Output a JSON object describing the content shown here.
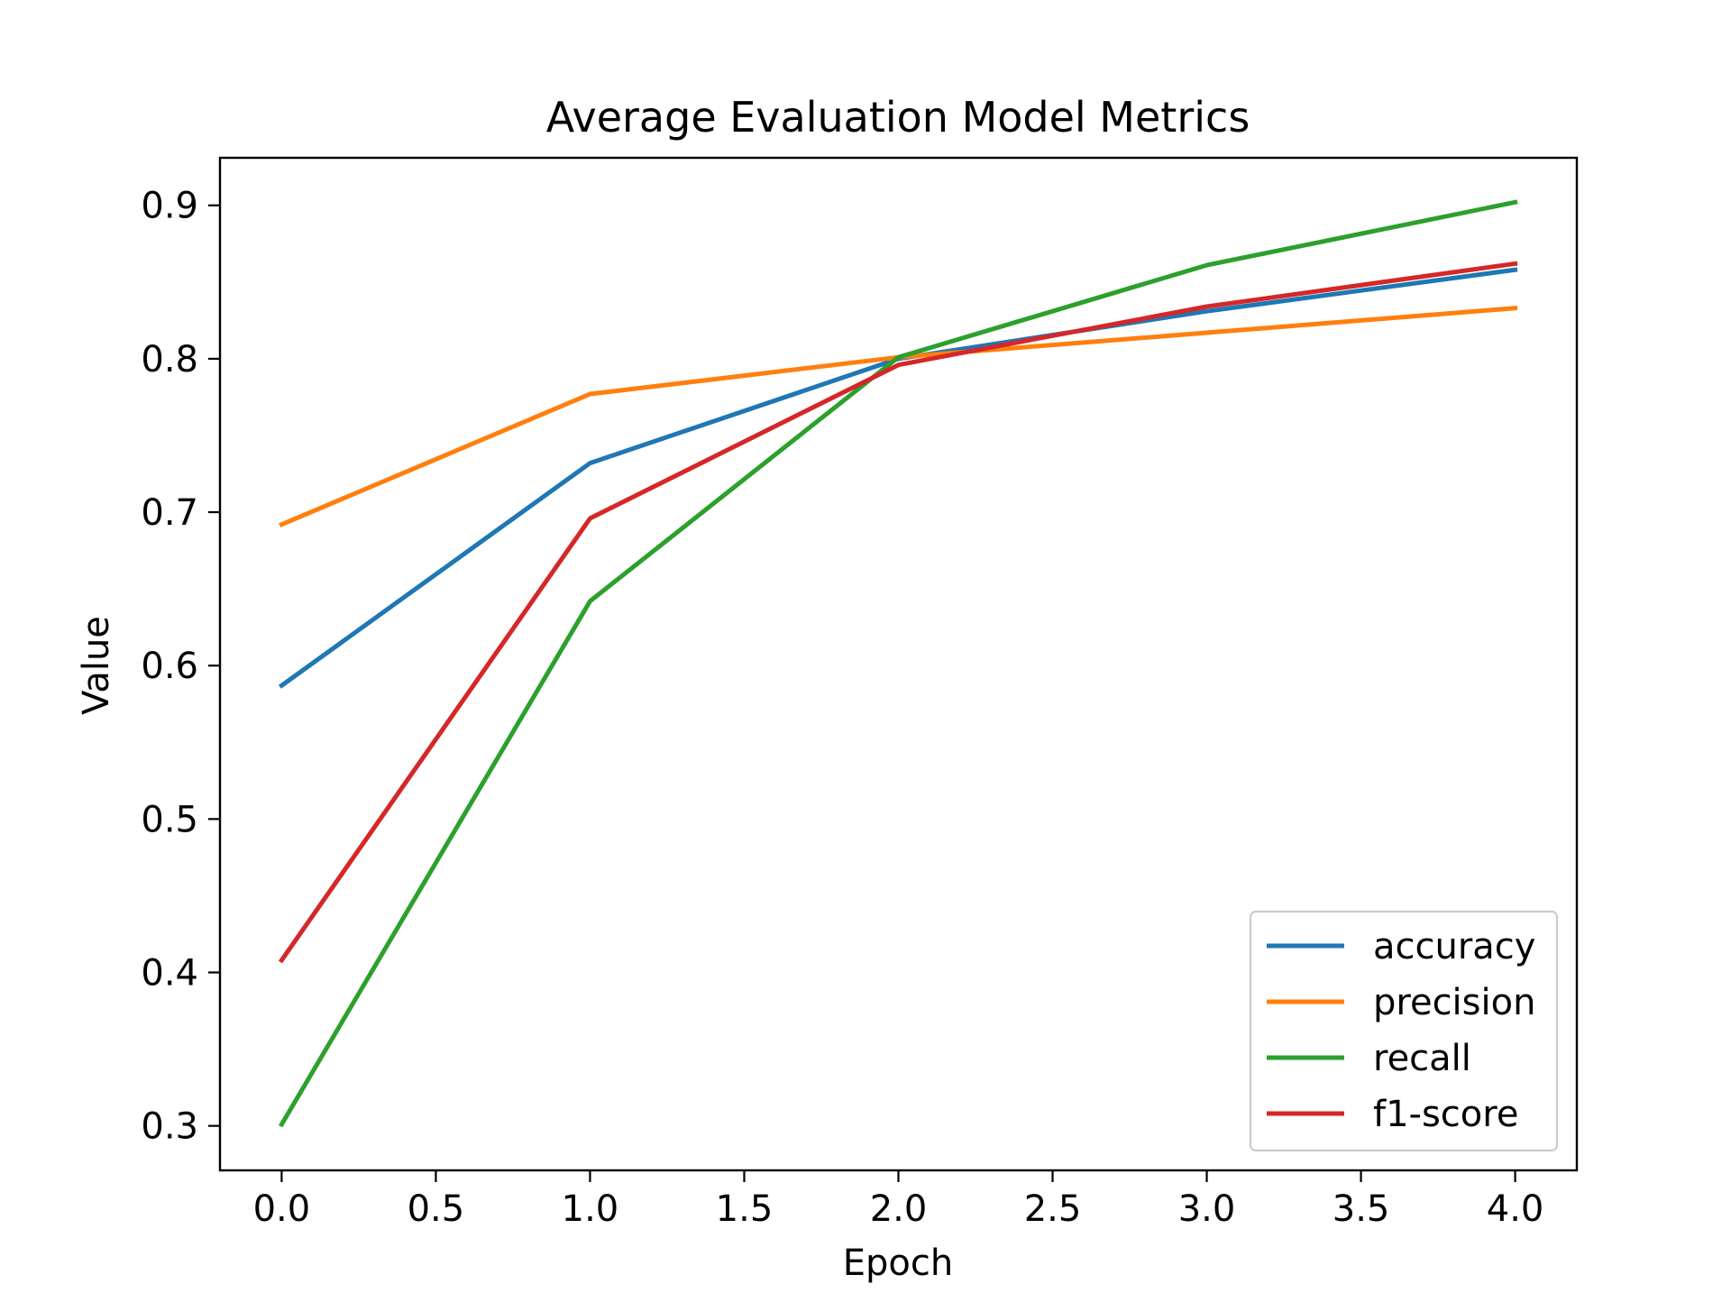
{
  "chart_data": {
    "type": "line",
    "title": "Average Evaluation Model Metrics",
    "xlabel": "Epoch",
    "ylabel": "Value",
    "x": [
      0.0,
      1.0,
      2.0,
      3.0,
      4.0
    ],
    "xlim": [
      -0.2,
      4.2
    ],
    "ylim": [
      0.271,
      0.931
    ],
    "xticks": [
      0.0,
      0.5,
      1.0,
      1.5,
      2.0,
      2.5,
      3.0,
      3.5,
      4.0
    ],
    "xtick_labels": [
      "0.0",
      "0.5",
      "1.0",
      "1.5",
      "2.0",
      "2.5",
      "3.0",
      "3.5",
      "4.0"
    ],
    "yticks": [
      0.3,
      0.4,
      0.5,
      0.6,
      0.7,
      0.8,
      0.9
    ],
    "ytick_labels": [
      "0.3",
      "0.4",
      "0.5",
      "0.6",
      "0.7",
      "0.8",
      "0.9"
    ],
    "grid": false,
    "legend_position": "lower-right",
    "series": [
      {
        "name": "accuracy",
        "color": "#1f77b4",
        "values": [
          0.587,
          0.732,
          0.8,
          0.831,
          0.858
        ]
      },
      {
        "name": "precision",
        "color": "#ff7f0e",
        "values": [
          0.692,
          0.777,
          0.801,
          0.817,
          0.833
        ]
      },
      {
        "name": "recall",
        "color": "#2ca02c",
        "values": [
          0.301,
          0.642,
          0.801,
          0.861,
          0.902
        ]
      },
      {
        "name": "f1-score",
        "color": "#d62728",
        "values": [
          0.408,
          0.696,
          0.796,
          0.834,
          0.862
        ]
      }
    ]
  }
}
